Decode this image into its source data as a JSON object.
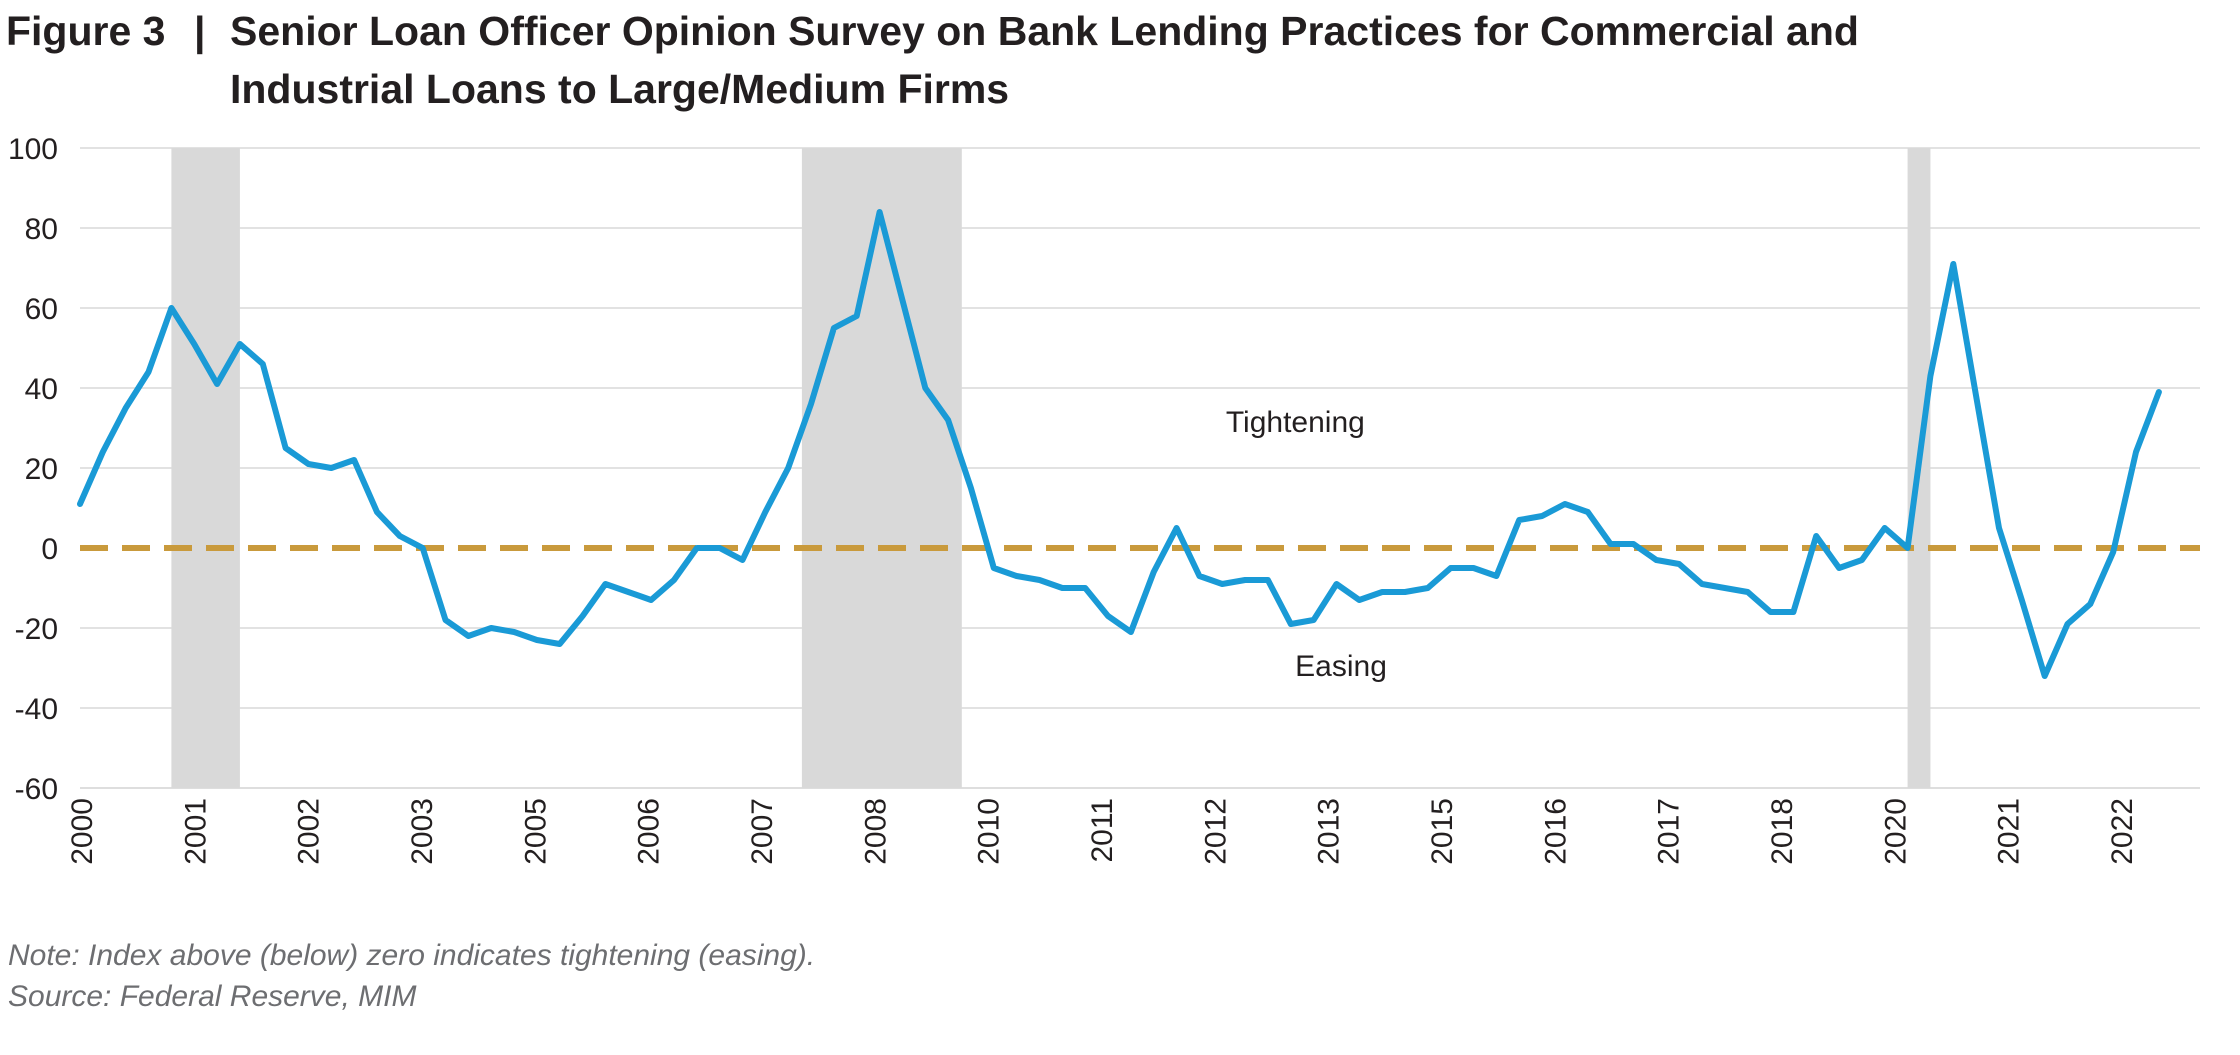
{
  "header": {
    "figure_label": "Figure 3",
    "separator": "|",
    "title": "Senior Loan Officer Opinion Survey on Bank Lending Practices for Commercial and Industrial Loans to Large/Medium Firms"
  },
  "footer": {
    "note": "Note: Index above (below) zero indicates tightening (easing).",
    "source": "Source: Federal Reserve, MIM"
  },
  "chart_data": {
    "type": "line",
    "title": "Senior Loan Officer Opinion Survey on Bank Lending Practices for Commercial and Industrial Loans to Large/Medium Firms",
    "xlabel": "",
    "ylabel": "",
    "ylim": [
      -60,
      100
    ],
    "yticks": [
      100,
      80,
      60,
      40,
      20,
      0,
      -20,
      -40,
      -60
    ],
    "xlim": [
      2000.0,
      2023.2
    ],
    "x_tick_labels": [
      "2000",
      "2001",
      "2002",
      "2003",
      "2005",
      "2006",
      "2007",
      "2008",
      "2010",
      "2011",
      "2012",
      "2013",
      "2015",
      "2016",
      "2017",
      "2018",
      "2020",
      "2021",
      "2022"
    ],
    "grid": "horizontal",
    "legend": "none",
    "colors": {
      "series": "#1a9ad6",
      "zero_line": "#c99a3c",
      "shading": "#d9d9d9",
      "grid": "#d9d9d9"
    },
    "recession_shading": [
      {
        "start": 2001.0,
        "end": 2001.75
      },
      {
        "start": 2007.9,
        "end": 2009.65
      },
      {
        "start": 2020.0,
        "end": 2020.25
      }
    ],
    "annotations": [
      {
        "text": "Tightening",
        "x": 2013.3,
        "y": 29
      },
      {
        "text": "Easing",
        "x": 2013.8,
        "y": -32
      }
    ],
    "reference_line": {
      "y": 0,
      "style": "dashed"
    },
    "series": [
      {
        "x": [
          2000.0,
          2000.25,
          2000.5,
          2000.75,
          2001.0,
          2001.25,
          2001.5,
          2001.75,
          2002.0,
          2002.25,
          2002.5,
          2002.75,
          2003.0,
          2003.25,
          2003.5,
          2003.75,
          2004.0,
          2004.25,
          2004.5,
          2004.75,
          2005.0,
          2005.25,
          2005.5,
          2005.75,
          2006.0,
          2006.25,
          2006.5,
          2006.75,
          2007.0,
          2007.25,
          2007.5,
          2007.75,
          2008.0,
          2008.25,
          2008.5,
          2008.75,
          2009.0,
          2009.25,
          2009.5,
          2009.75,
          2010.0,
          2010.25,
          2010.5,
          2010.75,
          2011.0,
          2011.25,
          2011.5,
          2011.75,
          2012.0,
          2012.25,
          2012.5,
          2012.75,
          2013.0,
          2013.25,
          2013.5,
          2013.75,
          2014.0,
          2014.25,
          2014.5,
          2014.75,
          2015.0,
          2015.25,
          2015.5,
          2015.75,
          2016.0,
          2016.25,
          2016.5,
          2016.75,
          2017.0,
          2017.25,
          2017.5,
          2017.75,
          2018.0,
          2018.25,
          2018.5,
          2018.75,
          2019.0,
          2019.25,
          2019.5,
          2019.75,
          2020.0,
          2020.25,
          2020.5,
          2020.75,
          2021.0,
          2021.25,
          2021.5,
          2021.75,
          2022.0,
          2022.25,
          2022.5,
          2022.75
        ],
        "values": [
          11,
          24,
          35,
          44,
          60,
          51,
          41,
          51,
          46,
          25,
          21,
          20,
          22,
          9,
          3,
          0,
          -18,
          -22,
          -20,
          -21,
          -23,
          -24,
          -17,
          -9,
          -11,
          -13,
          -8,
          0,
          0,
          -3,
          9,
          20,
          36,
          55,
          58,
          84,
          62,
          40,
          32,
          15,
          -5,
          -7,
          -8,
          -10,
          -10,
          -17,
          -21,
          -6,
          5,
          -7,
          -9,
          -8,
          -8,
          -19,
          -18,
          -9,
          -13,
          -11,
          -11,
          -10,
          -5,
          -5,
          -7,
          7,
          8,
          11,
          9,
          1,
          1,
          -3,
          -4,
          -9,
          -10,
          -11,
          -16,
          -16,
          3,
          -5,
          -3,
          5,
          0,
          43,
          71,
          38,
          5,
          -13,
          -32,
          -19,
          -14,
          -1,
          24,
          39
        ]
      }
    ]
  }
}
